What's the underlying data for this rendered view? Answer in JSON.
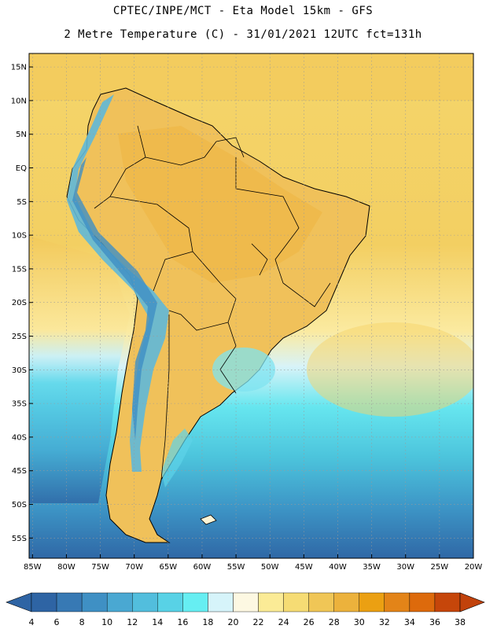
{
  "title": {
    "line1": "CPTEC/INPE/MCT -  Eta Model 15km - GFS",
    "line2": "2 Metre Temperature (C) - 31/01/2021 12UTC fct=131h"
  },
  "map": {
    "lat_labels": [
      "15N",
      "10N",
      "5N",
      "EQ",
      "5S",
      "10S",
      "15S",
      "20S",
      "25S",
      "30S",
      "35S",
      "40S",
      "45S",
      "50S",
      "55S"
    ],
    "lon_labels": [
      "85W",
      "80W",
      "75W",
      "70W",
      "65W",
      "60W",
      "55W",
      "50W",
      "45W",
      "40W",
      "35W",
      "30W",
      "25W",
      "20W"
    ],
    "lat_range": [
      17,
      -58
    ],
    "lon_range": [
      -85.5,
      -20
    ]
  },
  "colorbar": {
    "values": [
      "4",
      "6",
      "8",
      "10",
      "12",
      "14",
      "16",
      "18",
      "20",
      "22",
      "24",
      "26",
      "28",
      "30",
      "32",
      "34",
      "36",
      "38"
    ],
    "colors": [
      "#2e64a4",
      "#3779b4",
      "#3f90c4",
      "#4aa8d2",
      "#52bedd",
      "#58d2e6",
      "#66eef2",
      "#d6f4fa",
      "#fdf8e2",
      "#fbeb96",
      "#f6dc74",
      "#f0c656",
      "#ecb23c",
      "#eba012",
      "#e38418",
      "#dd6a0c",
      "#c6460a",
      "#c1420b"
    ]
  }
}
